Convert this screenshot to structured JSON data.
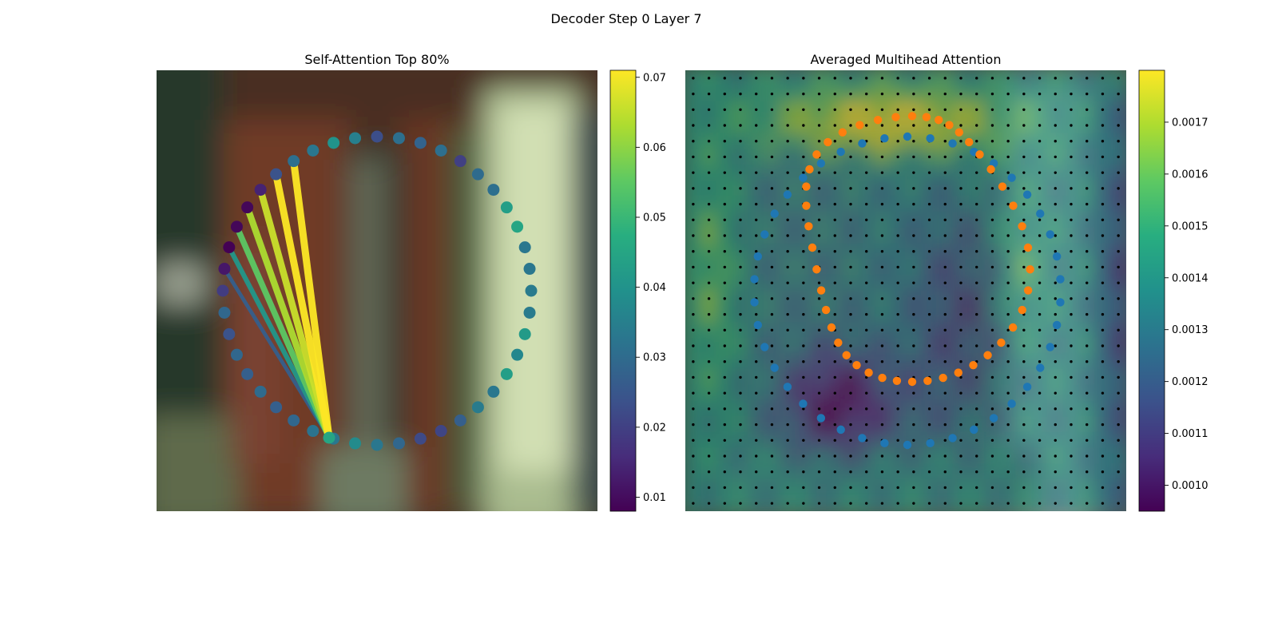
{
  "figure": {
    "suptitle": "Decoder Step 0 Layer 7"
  },
  "chart_data": [
    {
      "type": "scatter",
      "panel": "left",
      "title": "Self-Attention Top 80%",
      "background": "blurred photo (brown / green / pale green regions)",
      "colormap": "viridis",
      "colorbar": {
        "ticks": [
          "0.01",
          "0.02",
          "0.03",
          "0.04",
          "0.05",
          "0.06",
          "0.07"
        ],
        "range": [
          0.008,
          0.071
        ]
      },
      "marker_values": [
        0.023,
        0.031,
        0.028,
        0.031,
        0.02,
        0.03,
        0.031,
        0.043,
        0.045,
        0.033,
        0.033,
        0.034,
        0.034,
        0.042,
        0.037,
        0.043,
        0.033,
        0.034,
        0.027,
        0.021,
        0.022,
        0.029,
        0.033,
        0.038,
        0.033,
        0.032,
        0.029,
        0.027,
        0.03,
        0.027,
        0.029,
        0.024,
        0.029,
        0.019,
        0.012,
        0.008,
        0.009,
        0.009,
        0.014,
        0.024,
        0.031,
        0.033,
        0.04,
        0.035
      ],
      "highlighted_marker_value": 0.045,
      "attention_lines": [
        {
          "to_marker": 34,
          "value": 0.027
        },
        {
          "to_marker": 35,
          "value": 0.041
        },
        {
          "to_marker": 36,
          "value": 0.055
        },
        {
          "to_marker": 37,
          "value": 0.063
        },
        {
          "to_marker": 38,
          "value": 0.066
        },
        {
          "to_marker": 39,
          "value": 0.071
        },
        {
          "to_marker": 40,
          "value": 0.071
        }
      ]
    },
    {
      "type": "heatmap",
      "panel": "right",
      "title": "Averaged Multihead Attention",
      "colormap": "viridis",
      "colorbar": {
        "ticks": [
          "0.0010",
          "0.0011",
          "0.0012",
          "0.0013",
          "0.0014",
          "0.0015",
          "0.0016",
          "0.0017"
        ],
        "range": [
          0.00095,
          0.0018
        ]
      },
      "grid": {
        "rows": 28,
        "cols": 28
      },
      "overlays": [
        {
          "name": "blue contour points",
          "color": "#1f77b4",
          "count": 42
        },
        {
          "name": "orange contour points",
          "color": "#ff7f0e",
          "count": 44
        },
        {
          "name": "reference grid points",
          "color": "#000000",
          "count": 784
        }
      ]
    }
  ]
}
